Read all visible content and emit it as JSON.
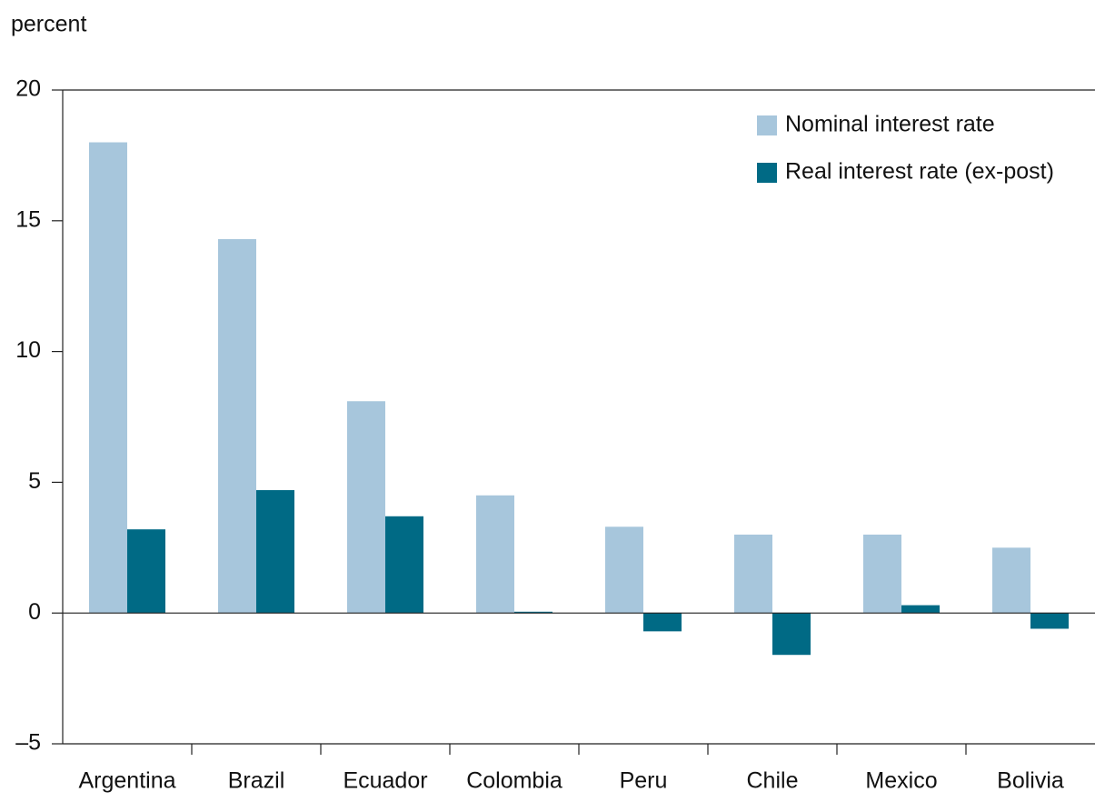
{
  "chart_data": {
    "type": "bar",
    "y_label": "percent",
    "categories": [
      "Argentina",
      "Brazil",
      "Ecuador",
      "Colombia",
      "Peru",
      "Chile",
      "Mexico",
      "Bolivia"
    ],
    "series": [
      {
        "name": "Nominal interest rate",
        "color": "#a7c6dc",
        "values": [
          18.0,
          14.3,
          8.1,
          4.5,
          3.3,
          3.0,
          3.0,
          2.5
        ]
      },
      {
        "name": "Real interest rate (ex-post)",
        "color": "#006a85",
        "values": [
          3.2,
          4.7,
          3.7,
          0.05,
          -0.7,
          -1.6,
          0.3,
          -0.6
        ]
      }
    ],
    "ylim": [
      -5,
      20
    ],
    "yticks": [
      {
        "value": -5,
        "label": "–5"
      },
      0,
      5,
      10,
      15,
      20
    ],
    "legend": "top-right"
  }
}
